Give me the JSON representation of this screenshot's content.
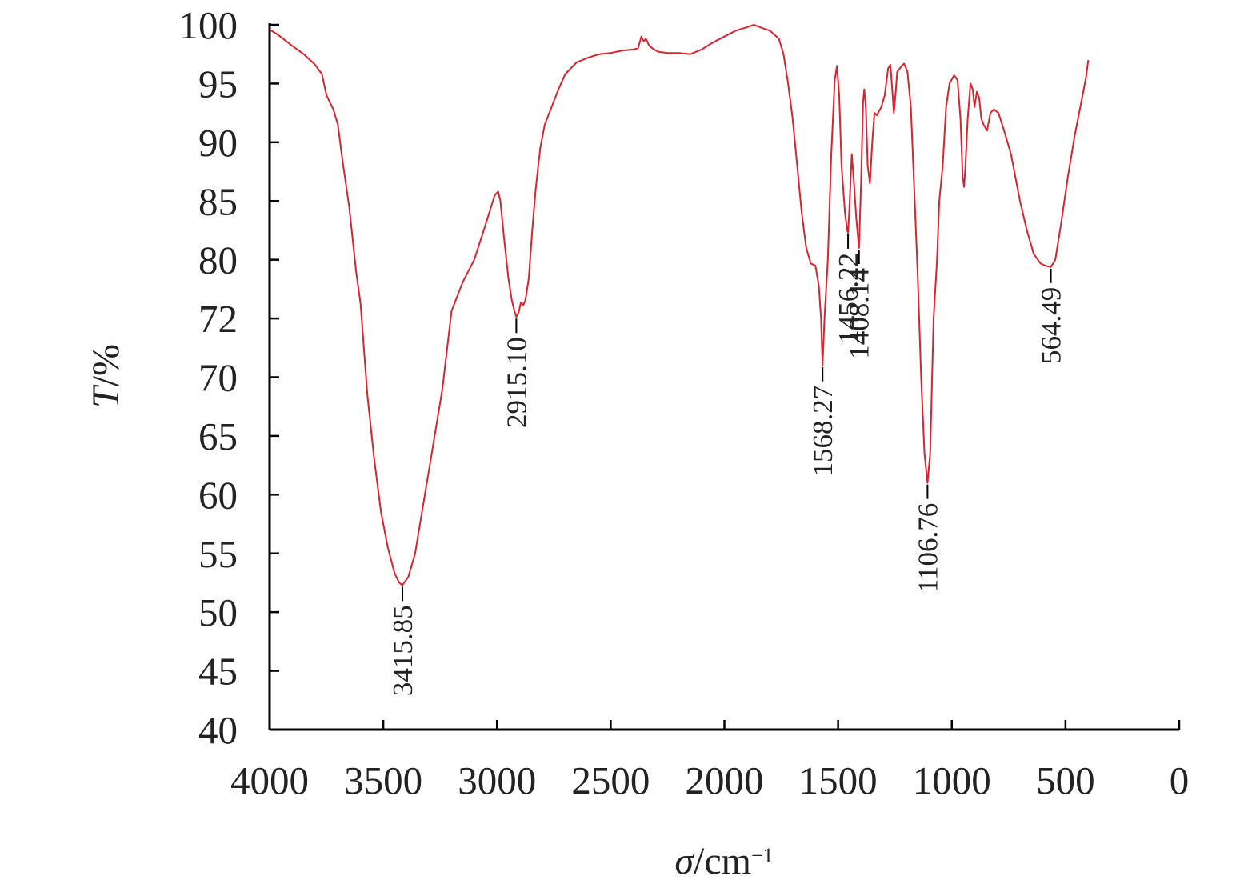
{
  "chart_data": {
    "type": "line",
    "title": "",
    "xlabel": {
      "symbol": "σ",
      "unit": "/cm",
      "exponent": "−1"
    },
    "ylabel": {
      "symbol": "T",
      "unit": "/%"
    },
    "xlim": [
      4000,
      0
    ],
    "x_ticks": [
      {
        "value": 4000,
        "label": "4000"
      },
      {
        "value": 3500,
        "label": "3500"
      },
      {
        "value": 3000,
        "label": "3000"
      },
      {
        "value": 2500,
        "label": "2500"
      },
      {
        "value": 2000,
        "label": "2000"
      },
      {
        "value": 1500,
        "label": "1500"
      },
      {
        "value": 1000,
        "label": "1000"
      },
      {
        "value": 500,
        "label": "500"
      },
      {
        "value": 0,
        "label": "0"
      }
    ],
    "y_ticks": [
      "100",
      "95",
      "90",
      "85",
      "80",
      "72",
      "70",
      "65",
      "60",
      "55",
      "50",
      "45",
      "40"
    ],
    "grid": false,
    "legend": "none",
    "series": [
      {
        "color": "#d9232e",
        "points": [
          [
            4000,
            99.6
          ],
          [
            3960,
            99.1
          ],
          [
            3900,
            98.2
          ],
          [
            3850,
            97.5
          ],
          [
            3800,
            96.6
          ],
          [
            3770,
            95.8
          ],
          [
            3750,
            94.0
          ],
          [
            3720,
            92.8
          ],
          [
            3700,
            91.5
          ],
          [
            3680,
            88.5
          ],
          [
            3650,
            84.5
          ],
          [
            3620,
            78.5
          ],
          [
            3600,
            74.0
          ],
          [
            3570,
            68.5
          ],
          [
            3540,
            63.0
          ],
          [
            3510,
            58.5
          ],
          [
            3480,
            55.5
          ],
          [
            3450,
            53.3
          ],
          [
            3430,
            52.5
          ],
          [
            3415.85,
            52.3
          ],
          [
            3390,
            53.0
          ],
          [
            3360,
            55.0
          ],
          [
            3330,
            58.5
          ],
          [
            3300,
            62.0
          ],
          [
            3270,
            65.5
          ],
          [
            3240,
            69.0
          ],
          [
            3200,
            73.0
          ],
          [
            3150,
            77.0
          ],
          [
            3100,
            80.0
          ],
          [
            3050,
            83.0
          ],
          [
            3010,
            85.5
          ],
          [
            2995,
            85.8
          ],
          [
            2985,
            85.0
          ],
          [
            2970,
            82.0
          ],
          [
            2950,
            77.5
          ],
          [
            2935,
            74.5
          ],
          [
            2925,
            73.2
          ],
          [
            2915.1,
            72.2
          ],
          [
            2905,
            72.8
          ],
          [
            2895,
            74.2
          ],
          [
            2885,
            73.8
          ],
          [
            2875,
            74.5
          ],
          [
            2860,
            77.5
          ],
          [
            2845,
            82.5
          ],
          [
            2830,
            86.0
          ],
          [
            2810,
            89.5
          ],
          [
            2790,
            91.5
          ],
          [
            2760,
            93.0
          ],
          [
            2730,
            94.5
          ],
          [
            2700,
            95.8
          ],
          [
            2650,
            96.8
          ],
          [
            2600,
            97.2
          ],
          [
            2550,
            97.5
          ],
          [
            2500,
            97.6
          ],
          [
            2450,
            97.8
          ],
          [
            2400,
            97.9
          ],
          [
            2380,
            98.0
          ],
          [
            2365,
            99.0
          ],
          [
            2355,
            98.6
          ],
          [
            2345,
            98.8
          ],
          [
            2330,
            98.2
          ],
          [
            2310,
            97.9
          ],
          [
            2290,
            97.7
          ],
          [
            2250,
            97.6
          ],
          [
            2200,
            97.6
          ],
          [
            2150,
            97.5
          ],
          [
            2100,
            97.9
          ],
          [
            2050,
            98.5
          ],
          [
            2000,
            99.0
          ],
          [
            1950,
            99.5
          ],
          [
            1900,
            99.8
          ],
          [
            1870,
            100.0
          ],
          [
            1830,
            99.7
          ],
          [
            1800,
            99.5
          ],
          [
            1760,
            98.8
          ],
          [
            1740,
            97.5
          ],
          [
            1720,
            95.0
          ],
          [
            1700,
            92.0
          ],
          [
            1680,
            88.0
          ],
          [
            1660,
            84.0
          ],
          [
            1640,
            81.0
          ],
          [
            1620,
            79.5
          ],
          [
            1600,
            79.2
          ],
          [
            1585,
            76.5
          ],
          [
            1575,
            72.0
          ],
          [
            1568.27,
            70.4
          ],
          [
            1560,
            72.0
          ],
          [
            1545,
            80.0
          ],
          [
            1530,
            89.0
          ],
          [
            1515,
            95.3
          ],
          [
            1505,
            96.5
          ],
          [
            1495,
            94.0
          ],
          [
            1485,
            88.0
          ],
          [
            1470,
            84.0
          ],
          [
            1460,
            82.5
          ],
          [
            1456.22,
            82.3
          ],
          [
            1450,
            84.5
          ],
          [
            1440,
            89.0
          ],
          [
            1432,
            87.0
          ],
          [
            1420,
            83.5
          ],
          [
            1408.14,
            81.0
          ],
          [
            1400,
            86.0
          ],
          [
            1390,
            93.5
          ],
          [
            1385,
            94.5
          ],
          [
            1378,
            93.0
          ],
          [
            1370,
            88.0
          ],
          [
            1360,
            86.5
          ],
          [
            1350,
            90.0
          ],
          [
            1340,
            92.5
          ],
          [
            1330,
            92.3
          ],
          [
            1310,
            93.0
          ],
          [
            1295,
            94.0
          ],
          [
            1280,
            96.3
          ],
          [
            1270,
            96.6
          ],
          [
            1262,
            94.5
          ],
          [
            1255,
            92.5
          ],
          [
            1248,
            94.0
          ],
          [
            1240,
            96.0
          ],
          [
            1220,
            96.5
          ],
          [
            1210,
            96.7
          ],
          [
            1195,
            96.0
          ],
          [
            1180,
            93.0
          ],
          [
            1165,
            86.0
          ],
          [
            1150,
            78.0
          ],
          [
            1135,
            70.0
          ],
          [
            1120,
            63.5
          ],
          [
            1106.76,
            61.0
          ],
          [
            1095,
            63.5
          ],
          [
            1080,
            72.0
          ],
          [
            1065,
            80.0
          ],
          [
            1055,
            85.0
          ],
          [
            1040,
            88.0
          ],
          [
            1025,
            93.0
          ],
          [
            1010,
            95.0
          ],
          [
            990,
            95.7
          ],
          [
            975,
            95.3
          ],
          [
            962,
            92.0
          ],
          [
            952,
            87.0
          ],
          [
            946,
            86.2
          ],
          [
            940,
            88.0
          ],
          [
            930,
            92.0
          ],
          [
            918,
            95.0
          ],
          [
            908,
            94.5
          ],
          [
            900,
            93.0
          ],
          [
            890,
            94.3
          ],
          [
            880,
            93.8
          ],
          [
            870,
            92.0
          ],
          [
            860,
            91.5
          ],
          [
            845,
            91.0
          ],
          [
            830,
            92.5
          ],
          [
            815,
            92.8
          ],
          [
            795,
            92.5
          ],
          [
            770,
            91.0
          ],
          [
            740,
            89.0
          ],
          [
            700,
            85.0
          ],
          [
            670,
            82.5
          ],
          [
            640,
            80.5
          ],
          [
            610,
            79.5
          ],
          [
            590,
            79.2
          ],
          [
            564.49,
            79.0
          ],
          [
            545,
            80.0
          ],
          [
            520,
            83.0
          ],
          [
            490,
            87.0
          ],
          [
            460,
            90.5
          ],
          [
            430,
            93.5
          ],
          [
            410,
            95.5
          ],
          [
            400,
            97.0
          ]
        ]
      }
    ],
    "annotations": [
      {
        "label": "3415.85",
        "x": 3415.85,
        "y": 52.3
      },
      {
        "label": "2915.10",
        "x": 2915.1,
        "y": 72.2
      },
      {
        "label": "1568.27",
        "x": 1568.27,
        "y": 70.4
      },
      {
        "label": "1456.22",
        "x": 1456.22,
        "y": 82.3
      },
      {
        "label": "1408.14",
        "x": 1408.14,
        "y": 81.0
      },
      {
        "label": "1106.76",
        "x": 1106.76,
        "y": 61.0
      },
      {
        "label": "564.49",
        "x": 564.49,
        "y": 79.0
      }
    ]
  }
}
